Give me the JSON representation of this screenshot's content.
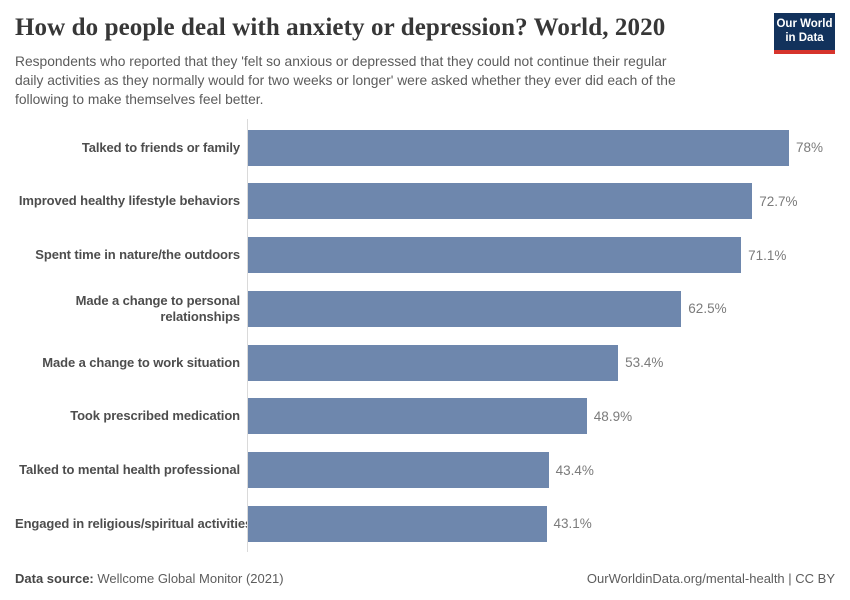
{
  "chart_data": {
    "type": "bar",
    "orientation": "horizontal",
    "title": "How do people deal with anxiety or depression? World, 2020",
    "subtitle_lines": [
      "Respondents who reported that they 'felt so anxious or depressed that they could not continue their regular",
      "daily activities as they normally would for two weeks or longer' were asked whether they ever did each of the",
      "following to make themselves feel better."
    ],
    "categories": [
      "Talked to friends or family",
      "Improved healthy lifestyle behaviors",
      "Spent time in nature/the outdoors",
      "Made a change to personal relationships",
      "Made a change to work situation",
      "Took prescribed medication",
      "Talked to mental health professional",
      "Engaged in religious/spiritual activities"
    ],
    "category_display_lines": [
      [
        "Talked to friends or family"
      ],
      [
        "Improved healthy lifestyle behaviors"
      ],
      [
        "Spent time in nature/the outdoors"
      ],
      [
        "Made a change to personal",
        "relationships"
      ],
      [
        "Made a change to work situation"
      ],
      [
        "Took prescribed medication"
      ],
      [
        "Talked to mental health professional"
      ],
      [
        "Engaged in religious/spiritual activities"
      ]
    ],
    "values": [
      78,
      72.7,
      71.1,
      62.5,
      53.4,
      48.9,
      43.4,
      43.1
    ],
    "value_labels": [
      "78%",
      "72.7%",
      "71.1%",
      "62.5%",
      "53.4%",
      "48.9%",
      "43.4%",
      "43.1%"
    ],
    "value_suffix": "%",
    "xlim": [
      0,
      78
    ],
    "grid": false,
    "legend": "none",
    "bar_color": "#6e87ad"
  },
  "logo": {
    "line1": "Our World",
    "line2": "in Data",
    "bg_color": "#12325c",
    "accent_color": "#d6342c"
  },
  "footer": {
    "source_label": "Data source:",
    "source_value": "Wellcome Global Monitor (2021)",
    "right_text": "OurWorldinData.org/mental-health | CC BY"
  }
}
